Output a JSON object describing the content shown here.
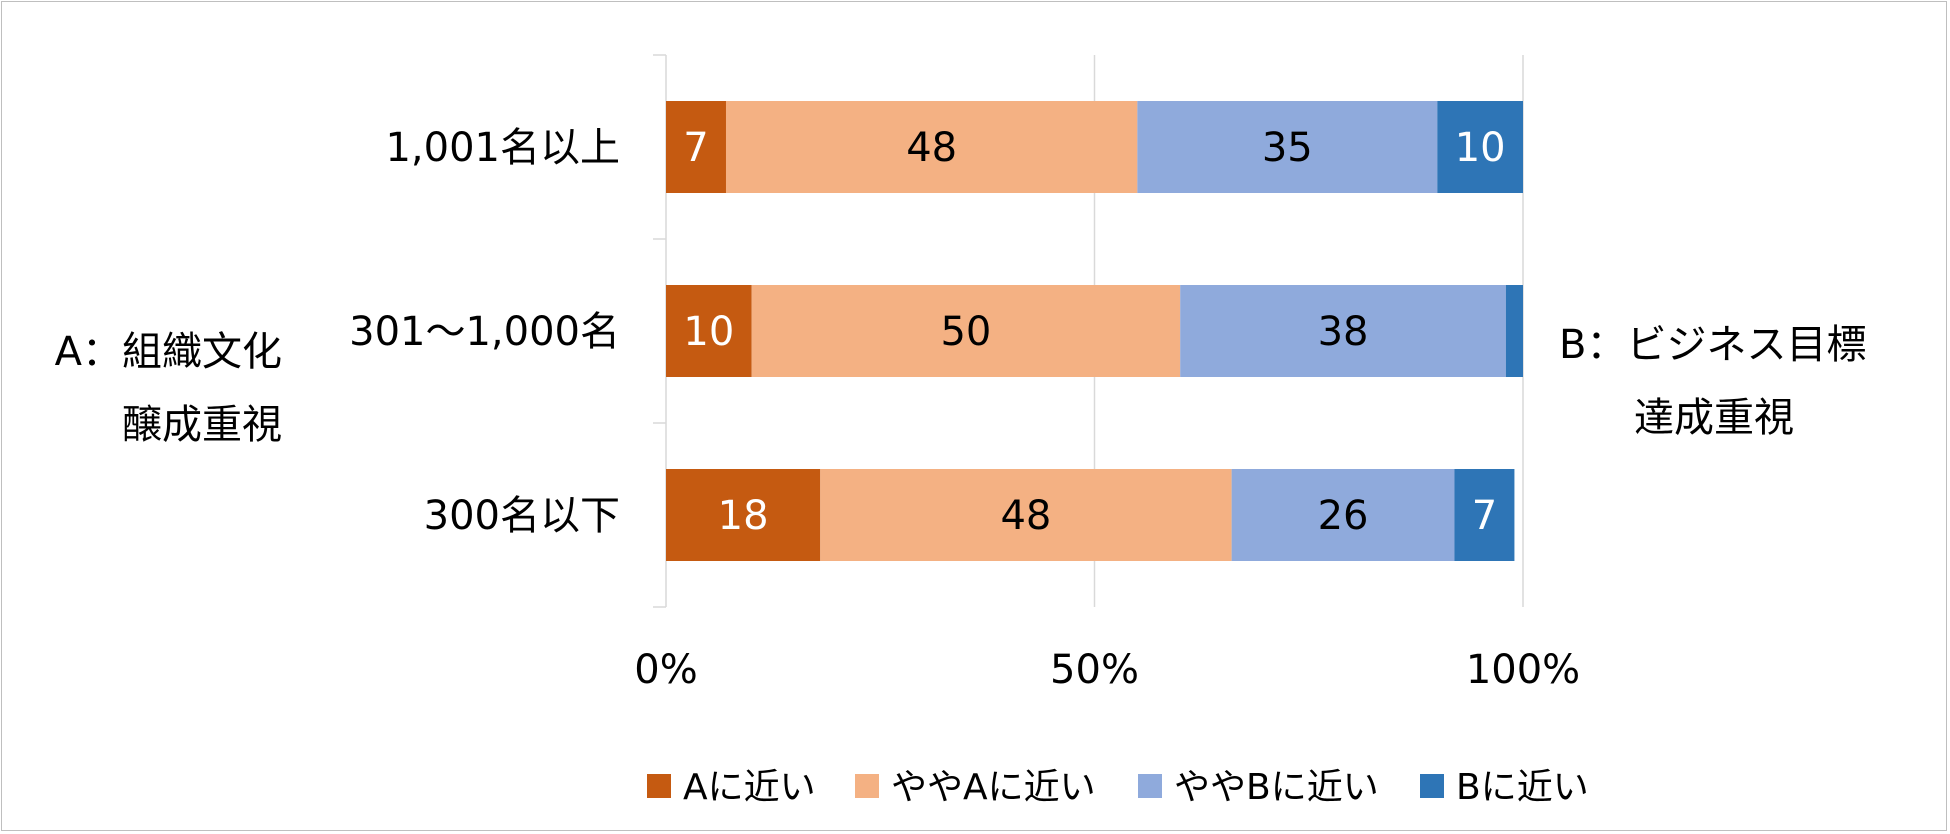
{
  "chart_data": {
    "type": "bar",
    "orientation": "horizontal",
    "stacked": true,
    "normalized_percent": true,
    "categories": [
      "1,001名以上",
      "301～1,000名",
      "300名以下"
    ],
    "series": [
      {
        "name": "Aに近い",
        "color": "#c55a11",
        "label_color": "#ffffff",
        "values": [
          7,
          10,
          18
        ]
      },
      {
        "name": "ややAに近い",
        "color": "#f4b183",
        "label_color": "#000000",
        "values": [
          48,
          50,
          48
        ]
      },
      {
        "name": "ややBに近い",
        "color": "#8faadc",
        "label_color": "#000000",
        "values": [
          35,
          38,
          26
        ]
      },
      {
        "name": "Bに近い",
        "color": "#2e75b6",
        "label_color": "#ffffff",
        "values": [
          10,
          2,
          7
        ]
      }
    ],
    "data_labels": [
      [
        "7",
        "48",
        "35",
        "10"
      ],
      [
        "10",
        "50",
        "38",
        ""
      ],
      [
        "18",
        "48",
        "26",
        "7"
      ]
    ],
    "x_ticks": [
      "0%",
      "50%",
      "100%"
    ],
    "xlim": [
      0,
      100
    ],
    "grid": true,
    "legend_position": "bottom",
    "left_label": [
      "A：組織文化",
      "醸成重視"
    ],
    "right_label": [
      "B：ビジネス目標",
      "達成重視"
    ],
    "xlabel": "",
    "ylabel": ""
  }
}
